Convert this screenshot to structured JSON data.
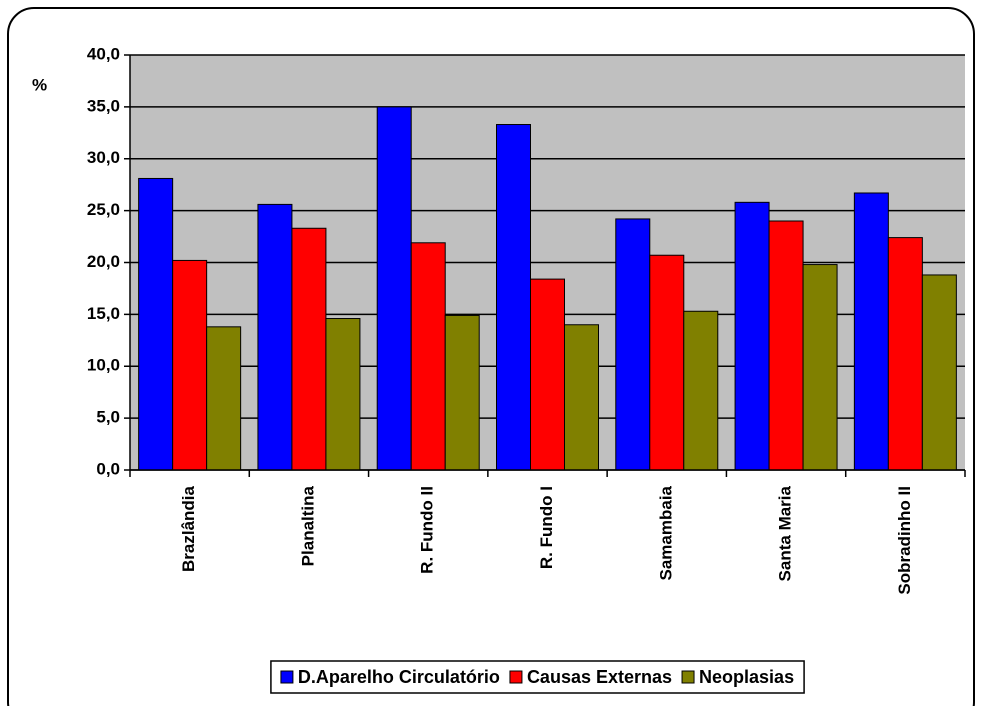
{
  "chart_data": {
    "type": "bar",
    "y_label": "%",
    "categories": [
      "Brazlândia",
      "Planaltina",
      "R. Fundo II",
      "R. Fundo I",
      "Samambaia",
      "Santa Maria",
      "Sobradinho II"
    ],
    "series": [
      {
        "name": "D.Aparelho Circulatório",
        "color": "#0000ff",
        "values": [
          28.1,
          25.6,
          35.0,
          33.3,
          24.2,
          25.8,
          26.7
        ]
      },
      {
        "name": "Causas Externas",
        "color": "#ff0000",
        "values": [
          20.2,
          23.3,
          21.9,
          18.4,
          20.7,
          24.0,
          22.4
        ]
      },
      {
        "name": "Neoplasias",
        "color": "#808000",
        "values": [
          13.8,
          14.6,
          14.9,
          14.0,
          15.3,
          19.8,
          18.8
        ]
      }
    ],
    "ylim": [
      0,
      40
    ],
    "yticks": [
      {
        "value": 0,
        "label": "0,0"
      },
      {
        "value": 5,
        "label": "5,0"
      },
      {
        "value": 10,
        "label": "10,0"
      },
      {
        "value": 15,
        "label": "15,0"
      },
      {
        "value": 20,
        "label": "20,0"
      },
      {
        "value": 25,
        "label": "25,0"
      },
      {
        "value": 30,
        "label": "30,0"
      },
      {
        "value": 35,
        "label": "35,0"
      },
      {
        "value": 40,
        "label": "40,0"
      }
    ],
    "grid": true,
    "plot_background": "#c0c0c0",
    "legend_position": "bottom"
  }
}
